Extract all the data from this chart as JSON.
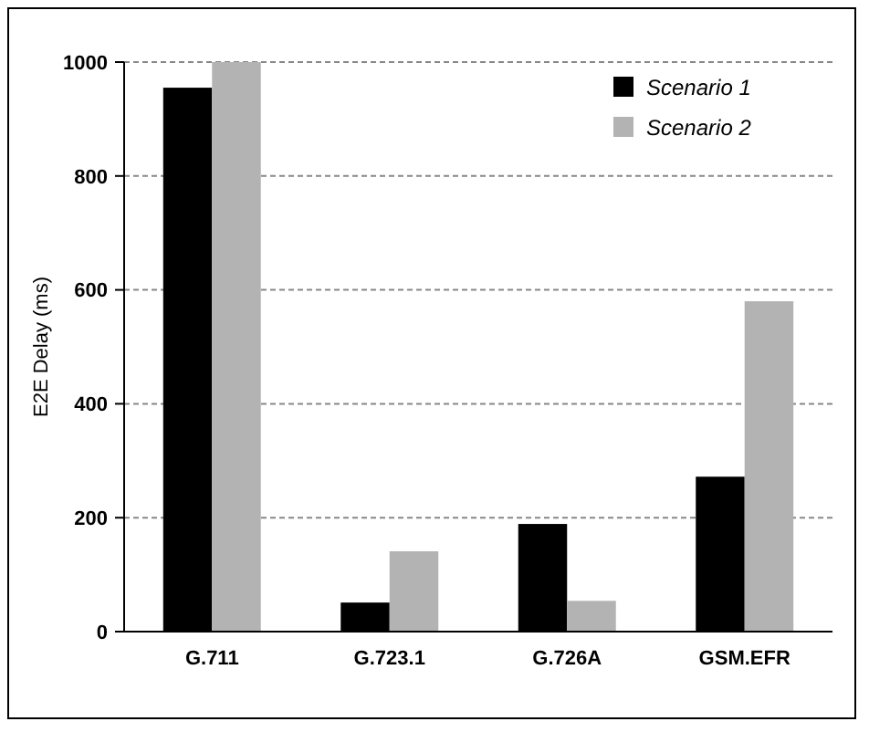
{
  "chart_data": {
    "type": "bar",
    "ylabel": "E2E Delay (ms)",
    "categories": [
      "G.711",
      "G.723.1",
      "G.726A",
      "GSM.EFR"
    ],
    "series": [
      {
        "name": "Scenario 1",
        "color": "#000000",
        "values": [
          955,
          51,
          189,
          272
        ]
      },
      {
        "name": "Scenario 2",
        "color": "#b3b3b3",
        "values": [
          1000,
          141,
          54,
          580
        ]
      }
    ],
    "ylim": [
      0,
      1000
    ],
    "yticks": [
      0,
      200,
      400,
      600,
      800,
      1000
    ],
    "grid": "y",
    "legend": "top right"
  }
}
